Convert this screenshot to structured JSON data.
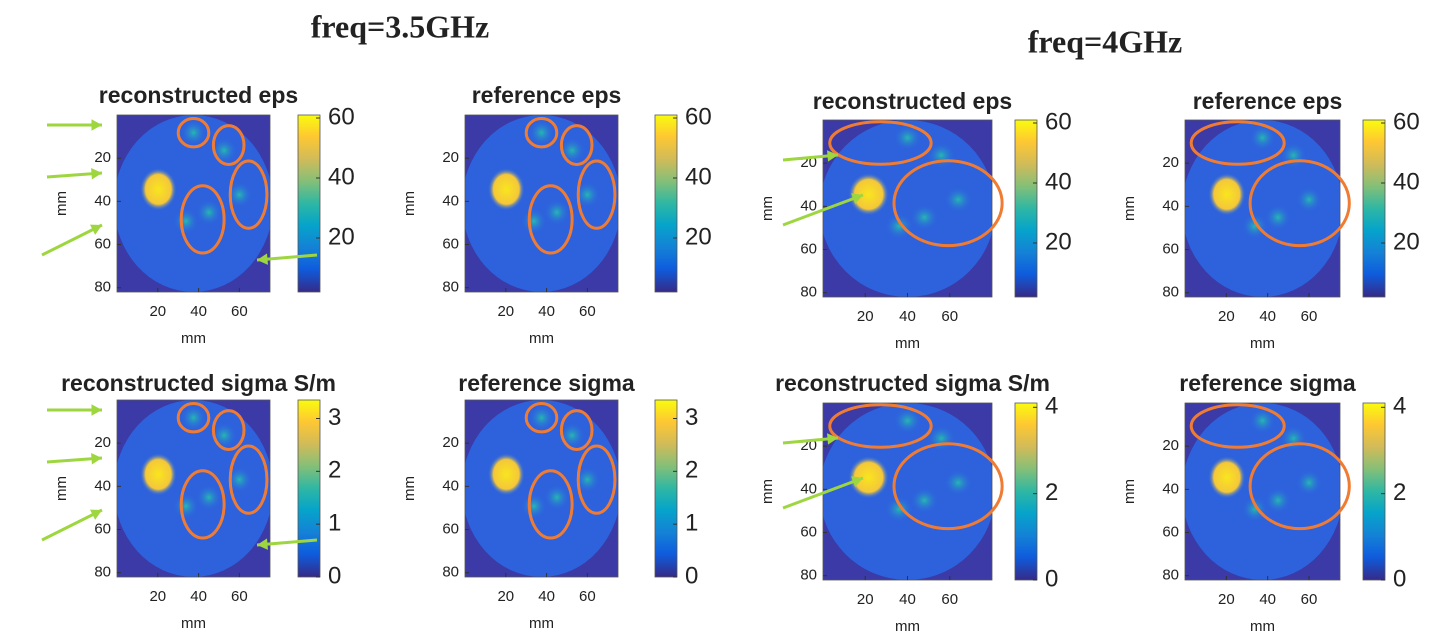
{
  "groups": [
    {
      "title": "freq=3.5GHz"
    },
    {
      "title": "freq=4GHz"
    }
  ],
  "chart_data": [
    {
      "type": "heatmap",
      "title": "reconstructed eps",
      "xlabel": "mm",
      "ylabel": "mm",
      "xlim": [
        0,
        75
      ],
      "ylim": [
        0,
        82
      ],
      "yreverse": true,
      "xticks": [
        20,
        40,
        60
      ],
      "yticks": [
        20,
        40,
        60,
        80
      ],
      "clim": [
        2,
        61
      ],
      "cticks": [
        20,
        40,
        60
      ]
    },
    {
      "type": "heatmap",
      "title": "reference eps",
      "xlabel": "mm",
      "ylabel": "mm",
      "xlim": [
        0,
        75
      ],
      "ylim": [
        0,
        82
      ],
      "yreverse": true,
      "xticks": [
        20,
        40,
        60
      ],
      "yticks": [
        20,
        40,
        60,
        80
      ],
      "clim": [
        2,
        61
      ],
      "cticks": [
        20,
        40,
        60
      ]
    },
    {
      "type": "heatmap",
      "title": "reconstructed eps",
      "xlabel": "mm",
      "ylabel": "mm",
      "xlim": [
        0,
        80
      ],
      "ylim": [
        0,
        82
      ],
      "yreverse": true,
      "xticks": [
        20,
        40,
        60
      ],
      "yticks": [
        20,
        40,
        60,
        80
      ],
      "clim": [
        2,
        61
      ],
      "cticks": [
        20,
        40,
        60
      ]
    },
    {
      "type": "heatmap",
      "title": "reference eps",
      "xlabel": "mm",
      "ylabel": "mm",
      "xlim": [
        0,
        75
      ],
      "ylim": [
        0,
        82
      ],
      "yreverse": true,
      "xticks": [
        20,
        40,
        60
      ],
      "yticks": [
        20,
        40,
        60,
        80
      ],
      "clim": [
        2,
        61
      ],
      "cticks": [
        20,
        40,
        60
      ]
    },
    {
      "type": "heatmap",
      "title": "reconstructed sigma S/m",
      "xlabel": "mm",
      "ylabel": "mm",
      "xlim": [
        0,
        75
      ],
      "ylim": [
        0,
        82
      ],
      "yreverse": true,
      "xticks": [
        20,
        40,
        60
      ],
      "yticks": [
        20,
        40,
        60,
        80
      ],
      "clim": [
        0,
        3.35
      ],
      "cticks": [
        0,
        1,
        2,
        3
      ]
    },
    {
      "type": "heatmap",
      "title": "reference sigma",
      "xlabel": "mm",
      "ylabel": "mm",
      "xlim": [
        0,
        75
      ],
      "ylim": [
        0,
        82
      ],
      "yreverse": true,
      "xticks": [
        20,
        40,
        60
      ],
      "yticks": [
        20,
        40,
        60,
        80
      ],
      "clim": [
        0,
        3.35
      ],
      "cticks": [
        0,
        1,
        2,
        3
      ]
    },
    {
      "type": "heatmap",
      "title": "reconstructed sigma S/m",
      "xlabel": "mm",
      "ylabel": "mm",
      "xlim": [
        0,
        80
      ],
      "ylim": [
        0,
        82
      ],
      "yreverse": true,
      "xticks": [
        20,
        40,
        60
      ],
      "yticks": [
        20,
        40,
        60,
        80
      ],
      "clim": [
        0,
        4.1
      ],
      "cticks": [
        0,
        2,
        4
      ]
    },
    {
      "type": "heatmap",
      "title": "reference sigma",
      "xlabel": "mm",
      "ylabel": "mm",
      "xlim": [
        0,
        75
      ],
      "ylim": [
        0,
        82
      ],
      "yreverse": true,
      "xticks": [
        20,
        40,
        60
      ],
      "yticks": [
        20,
        40,
        60,
        80
      ],
      "clim": [
        0,
        4.1
      ],
      "cticks": [
        0,
        2,
        4
      ]
    }
  ]
}
